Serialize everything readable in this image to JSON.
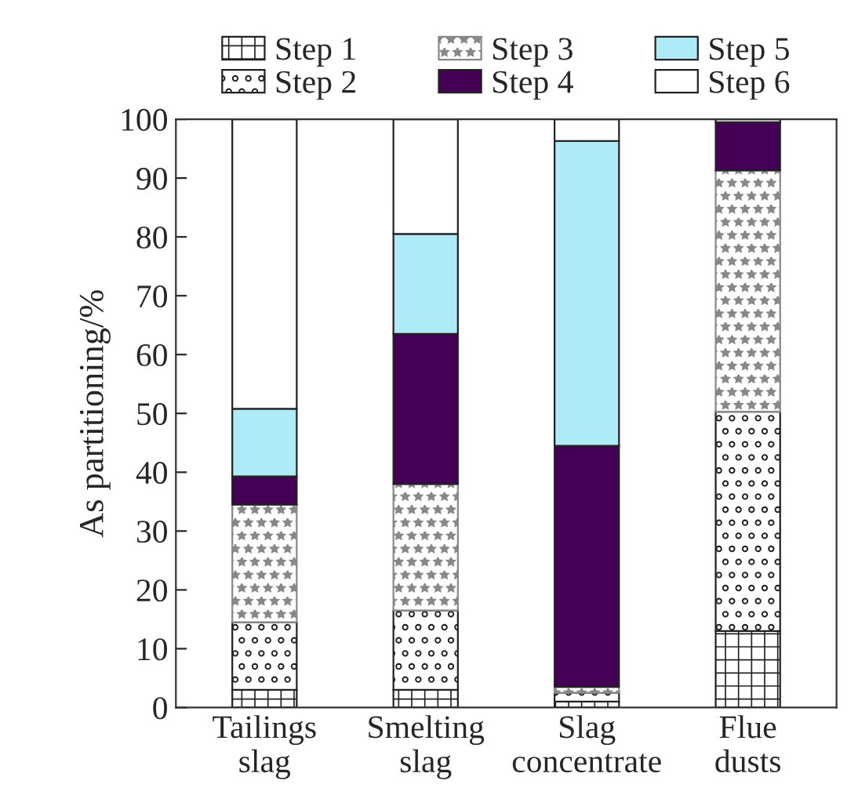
{
  "chart_data": {
    "type": "bar",
    "stacked": true,
    "ylabel": "As partitioning/%",
    "categories": [
      "Tailings\nslag",
      "Smelting\nslag",
      "Slag\nconcentrate",
      "Flue\ndusts"
    ],
    "series": [
      {
        "name": "Step 1",
        "color": "#222222",
        "values": [
          3,
          3,
          1,
          13
        ]
      },
      {
        "name": "Step 2",
        "color": "#222222",
        "values": [
          11.5,
          13.5,
          1.5,
          37.3
        ]
      },
      {
        "name": "Step 3",
        "color": "#888888",
        "values": [
          20,
          21.5,
          1,
          41
        ]
      },
      {
        "name": "Step 4",
        "color": "#440055",
        "values": [
          4.8,
          25.5,
          41,
          8.2
        ]
      },
      {
        "name": "Step 5",
        "color": "#aeeaf8",
        "values": [
          11.5,
          17,
          51.8,
          0
        ]
      },
      {
        "name": "Step 6",
        "color": "#ffffff",
        "values": [
          49.2,
          19.5,
          3.7,
          0.5
        ]
      }
    ],
    "ylim": [
      0,
      100
    ],
    "yticks": [
      0,
      10,
      20,
      30,
      40,
      50,
      60,
      70,
      80,
      90,
      100
    ],
    "legend": "top",
    "grid": false
  }
}
